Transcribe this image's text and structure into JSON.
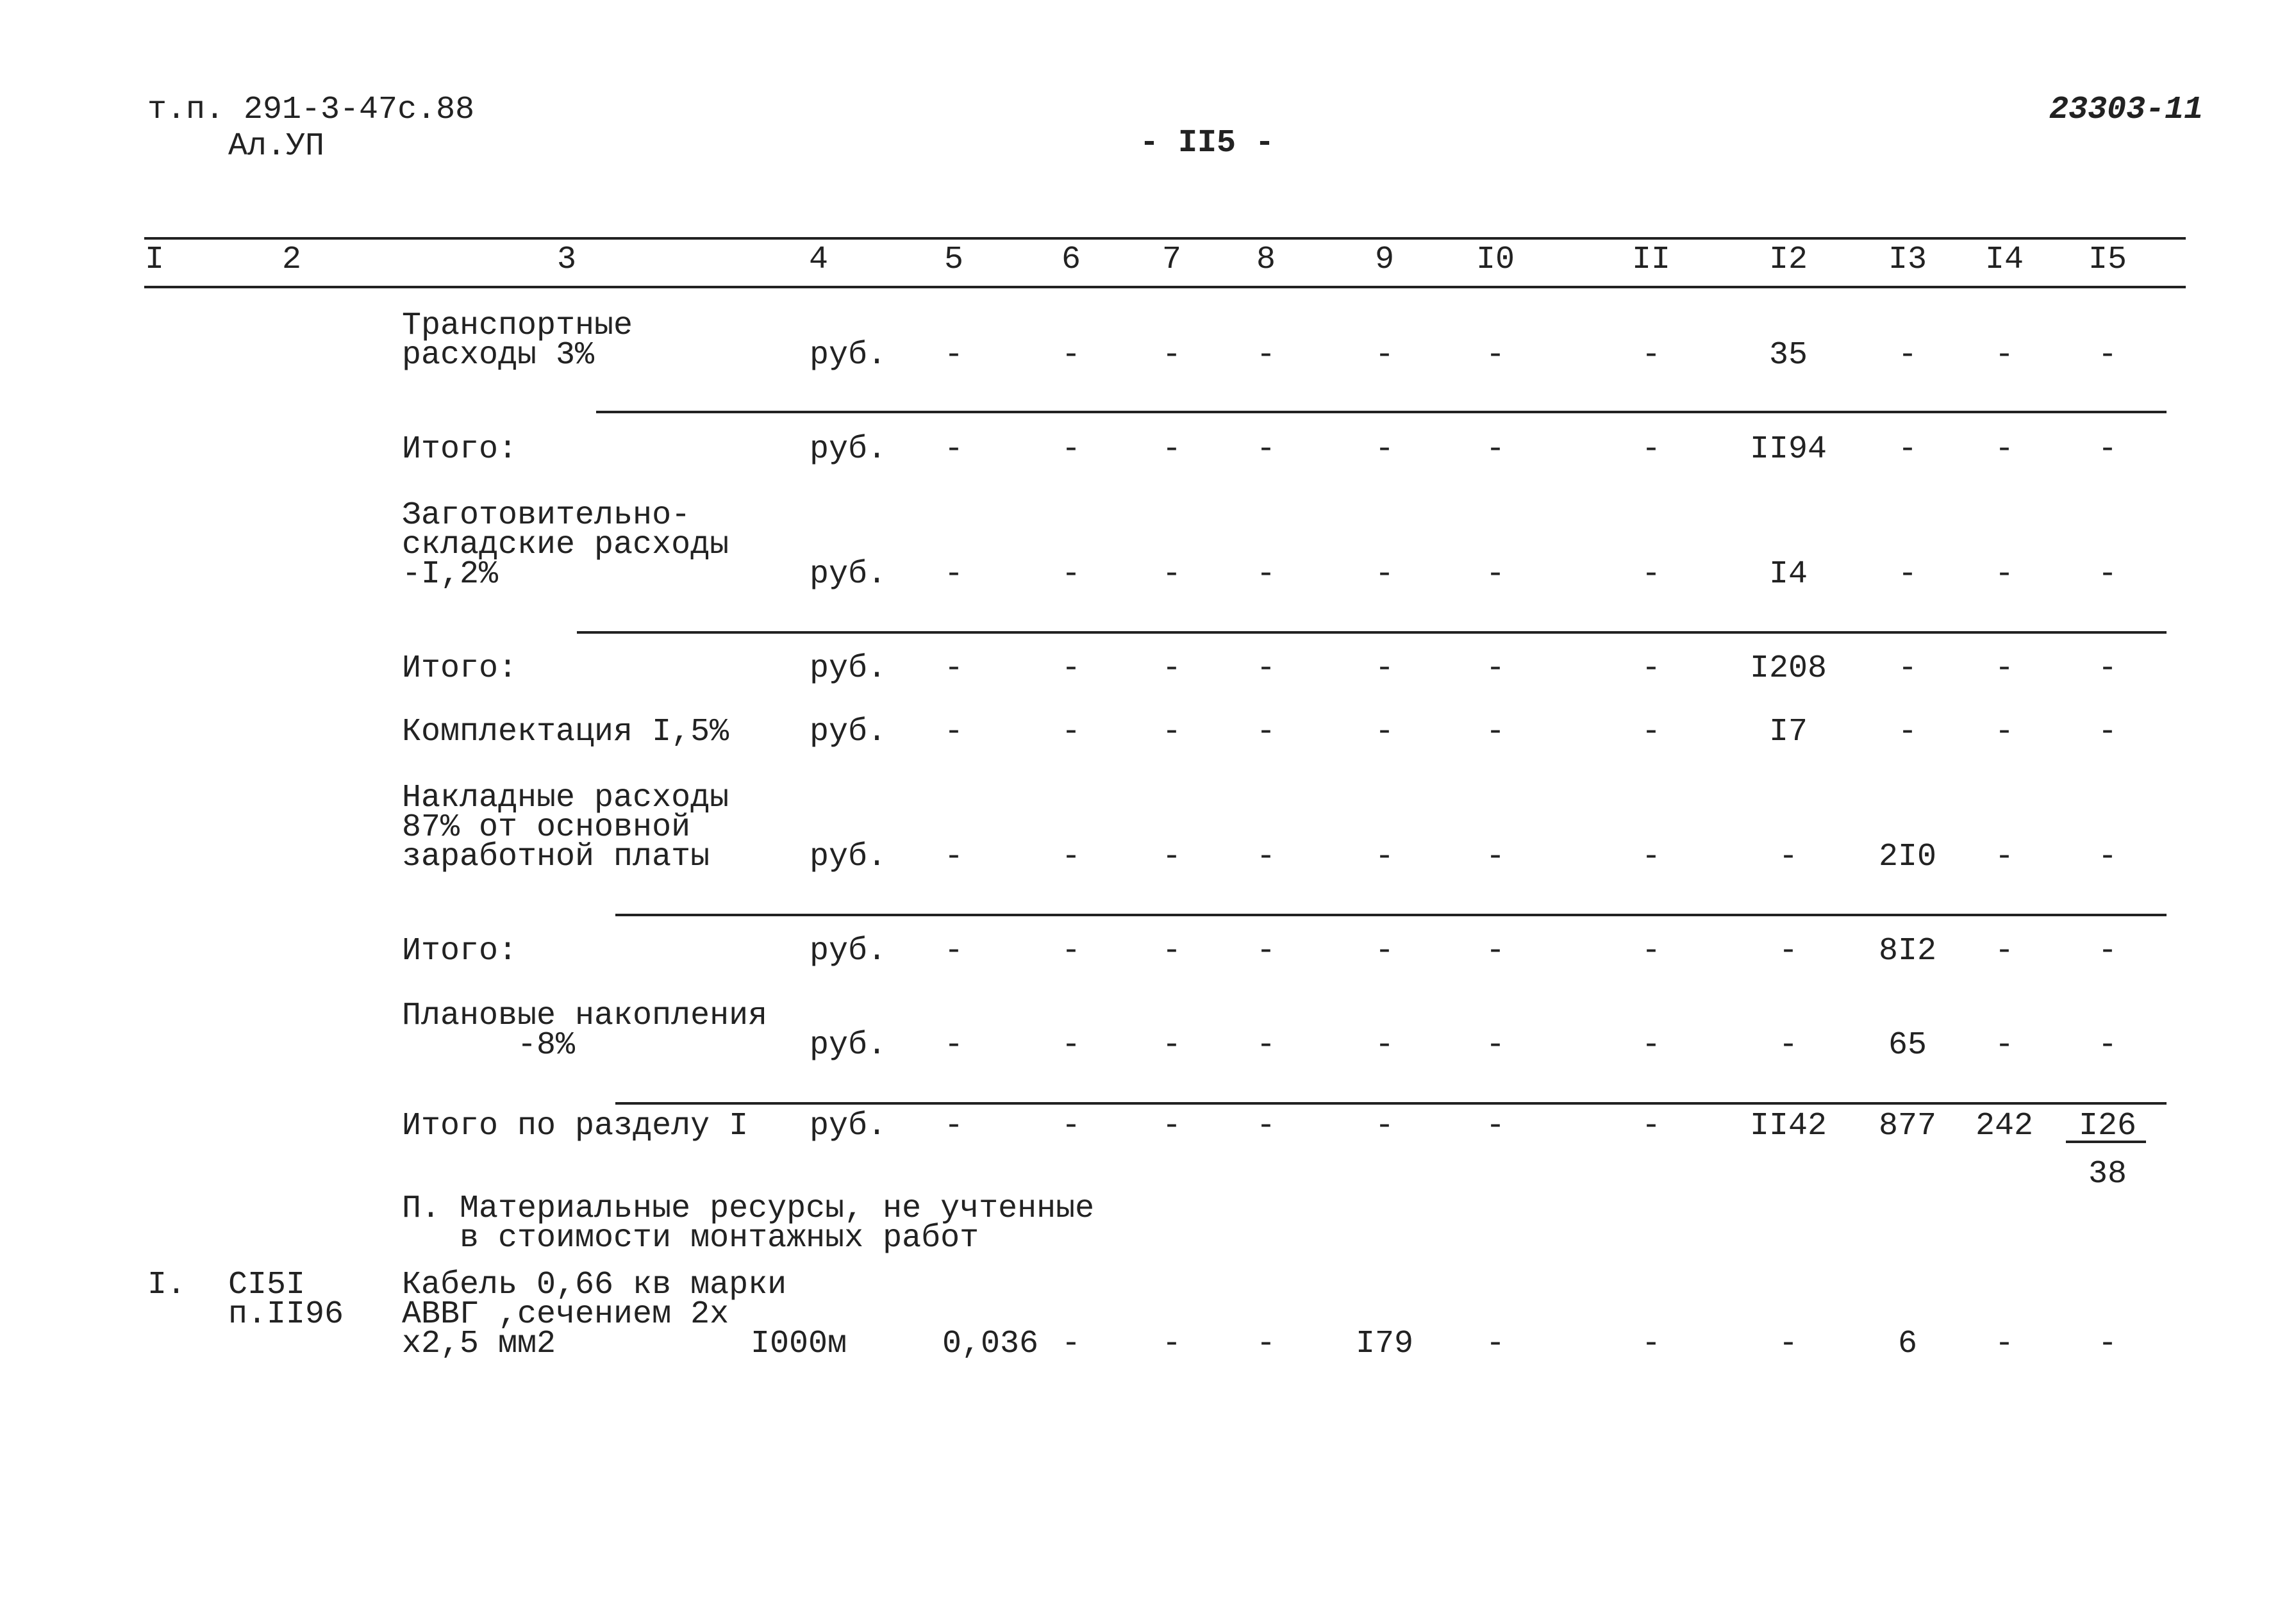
{
  "header": {
    "doc_lines": [
      "т.п. 291-3-47с.88",
      "Ал.УП"
    ],
    "page_number": "- II5 -",
    "code": "23303-11"
  },
  "table": {
    "columns": [
      "I",
      "2",
      "3",
      "4",
      "5",
      "6",
      "7",
      "8",
      "9",
      "I0",
      "II",
      "I2",
      "I3",
      "I4",
      "I5"
    ],
    "rows": [
      [
        null,
        null,
        [
          "Транспортные",
          "расходы 3%"
        ],
        "руб.",
        "-",
        "-",
        "-",
        "-",
        "-",
        "-",
        "-",
        "35",
        "-",
        "-",
        "-"
      ],
      [
        null,
        null,
        [
          "Итого:"
        ],
        "руб.",
        "-",
        "-",
        "-",
        "-",
        "-",
        "-",
        "-",
        "II94",
        "-",
        "-",
        "-"
      ],
      [
        null,
        null,
        [
          "Заготовительно-",
          "складские расходы",
          "-I,2%"
        ],
        "руб.",
        "-",
        "-",
        "-",
        "-",
        "-",
        "-",
        "-",
        "I4",
        "-",
        "-",
        "-"
      ],
      [
        null,
        null,
        [
          "Итого:"
        ],
        "руб.",
        "-",
        "-",
        "-",
        "-",
        "-",
        "-",
        "-",
        "I208",
        "-",
        "-",
        "-"
      ],
      [
        null,
        null,
        [
          "Комплектация I,5%"
        ],
        "руб.",
        "-",
        "-",
        "-",
        "-",
        "-",
        "-",
        "-",
        "I7",
        "-",
        "-",
        "-"
      ],
      [
        null,
        null,
        [
          "Накладные расходы",
          "87% от основной",
          "заработной платы"
        ],
        "руб.",
        "-",
        "-",
        "-",
        "-",
        "-",
        "-",
        "-",
        "-",
        "2I0",
        "-",
        "-"
      ],
      [
        null,
        null,
        [
          "Итого:"
        ],
        "руб.",
        "-",
        "-",
        "-",
        "-",
        "-",
        "-",
        "-",
        "-",
        "8I2",
        "-",
        "-"
      ],
      [
        null,
        null,
        [
          "Плановые накопления",
          "      -8%"
        ],
        "руб.",
        "-",
        "-",
        "-",
        "-",
        "-",
        "-",
        "-",
        "-",
        "65",
        "-",
        "-"
      ],
      [
        null,
        null,
        [
          "Итого по разделу I"
        ],
        "руб.",
        "-",
        "-",
        "-",
        "-",
        "-",
        "-",
        "-",
        "II42",
        "877",
        "242",
        {
          "numerator": "I26",
          "denominator": "38"
        }
      ],
      [
        null,
        null,
        [
          "П. Материальные ресурсы, не учтенные",
          "   в стоимости монтажных работ"
        ],
        null,
        null,
        null,
        null,
        null,
        null,
        null,
        null,
        null,
        null,
        null,
        null
      ],
      [
        "I.",
        [
          "CI5I",
          "п.II96"
        ],
        [
          "Кабель 0,66 кв марки",
          "АВВГ ,сечением 2х",
          "х2,5 мм2"
        ],
        "I000м",
        "0,036",
        "-",
        "-",
        "-",
        "I79",
        "-",
        "-",
        "-",
        "6",
        "-",
        "-"
      ]
    ]
  }
}
